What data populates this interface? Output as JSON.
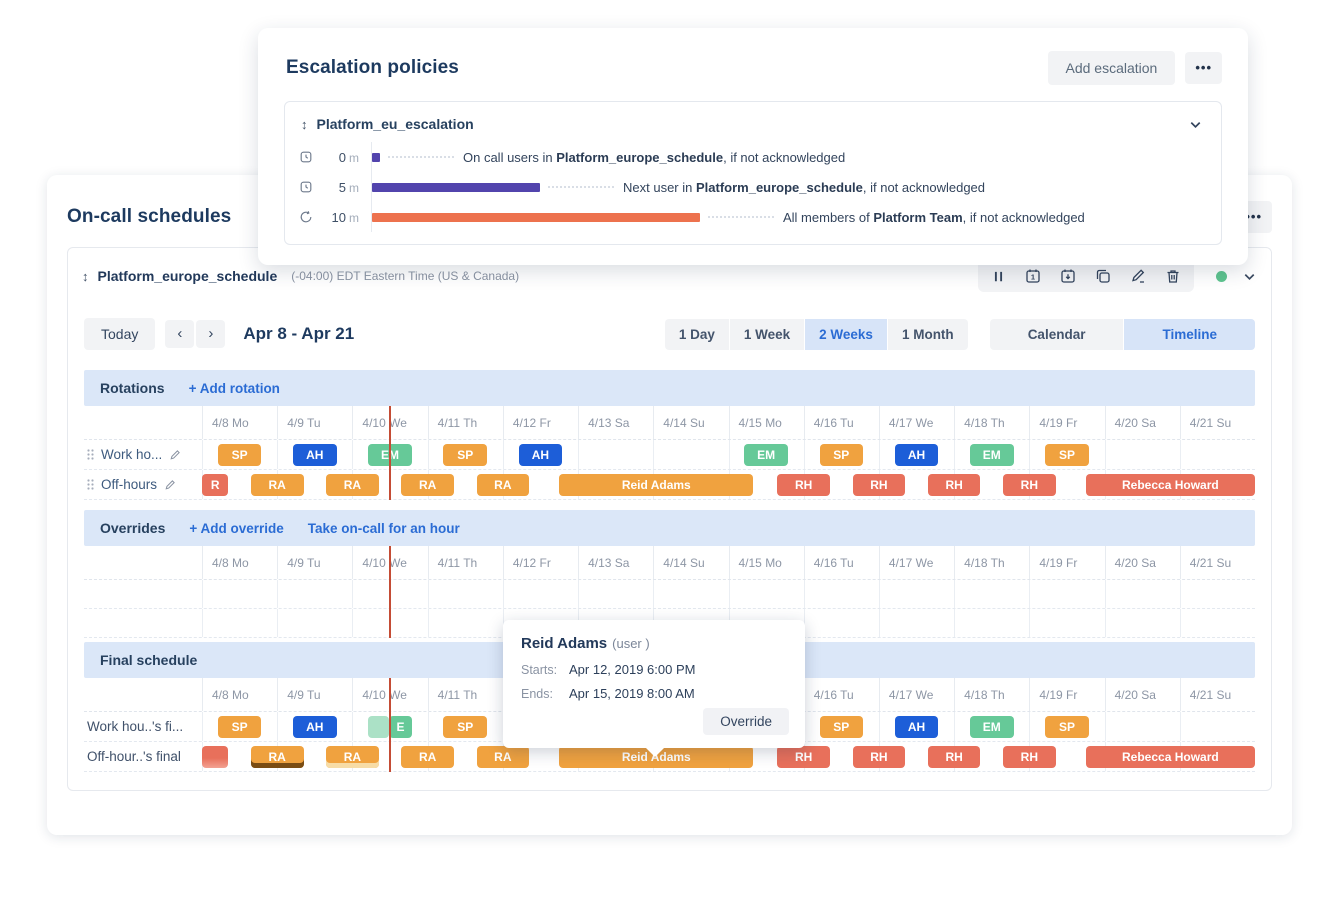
{
  "palette": {
    "accent_blue": "#2b6cd4",
    "navy_text": "#1d3a5f",
    "chip_orange": "#f0a23f",
    "chip_blue": "#1d5ed8",
    "chip_green": "#66c998",
    "chip_salmon": "#e8705b",
    "bar_purple": "#5244ad",
    "bar_orange": "#ed724e",
    "now_line": "#c44c35",
    "band_bg": "#dbe7f8",
    "status_green": "#5ec48f"
  },
  "icons": {
    "dots": "•••",
    "prev": "‹",
    "next": "›",
    "drag": "↕"
  },
  "escalation_card": {
    "title": "Escalation policies",
    "add_button": "Add escalation",
    "policy": {
      "name": "Platform_eu_escalation",
      "rules": [
        {
          "icon": "clock",
          "time_value": "0",
          "time_unit": "m",
          "minutes": 0,
          "bar": "purple",
          "text_pre": "On call users in ",
          "text_bold": "Platform_europe_schedule",
          "text_post": ", if not acknowledged"
        },
        {
          "icon": "clock",
          "time_value": "5",
          "time_unit": "m",
          "minutes": 5,
          "bar": "purple",
          "text_pre": "Next user in ",
          "text_bold": "Platform_europe_schedule",
          "text_post": ", if not acknowledged"
        },
        {
          "icon": "repeat",
          "time_value": "10",
          "time_unit": "m",
          "minutes": 10,
          "bar": "orange",
          "text_pre": "All members of ",
          "text_bold": "Platform Team",
          "text_post": ", if not acknowledged"
        }
      ]
    }
  },
  "schedules_card": {
    "title": "On-call schedules",
    "schedule": {
      "name": "Platform_europe_schedule",
      "timezone": "(-04:00) EDT Eastern Time (US & Canada)",
      "toolbar": {
        "today": "Today",
        "range": "Apr 8 - Apr 21",
        "views": [
          "1 Day",
          "1 Week",
          "2 Weeks",
          "1 Month"
        ],
        "active_view": "2 Weeks",
        "modes": [
          "Calendar",
          "Timeline"
        ],
        "active_mode": "Timeline"
      },
      "sections": {
        "rotations": {
          "title": "Rotations",
          "action": "+ Add rotation"
        },
        "overrides": {
          "title": "Overrides",
          "action_add": "+ Add override",
          "action_take": "Take on-call for an hour"
        },
        "final": {
          "title": "Final schedule"
        }
      },
      "days": [
        "4/8 Mo",
        "4/9 Tu",
        "4/10 We",
        "4/11 Th",
        "4/12 Fr",
        "4/13 Sa",
        "4/14 Su",
        "4/15 Mo",
        "4/16 Tu",
        "4/17 We",
        "4/18 Th",
        "4/19 Fr",
        "4/20 Sa",
        "4/21 Su"
      ],
      "now_day": 2.49,
      "rows": {
        "rotation_work": {
          "label": "Work ho...",
          "blocks": [
            {
              "label": "SP",
              "color": "orange",
              "start": 0.21,
              "end": 0.79
            },
            {
              "label": "AH",
              "color": "blue",
              "start": 1.21,
              "end": 1.79
            },
            {
              "label": "EM",
              "color": "green",
              "start": 2.21,
              "end": 2.79
            },
            {
              "label": "SP",
              "color": "orange",
              "start": 3.21,
              "end": 3.79
            },
            {
              "label": "AH",
              "color": "blue",
              "start": 4.21,
              "end": 4.79
            },
            {
              "label": "EM",
              "color": "green",
              "start": 7.21,
              "end": 7.79
            },
            {
              "label": "SP",
              "color": "orange",
              "start": 8.21,
              "end": 8.79
            },
            {
              "label": "AH",
              "color": "blue",
              "start": 9.21,
              "end": 9.79
            },
            {
              "label": "EM",
              "color": "green",
              "start": 10.21,
              "end": 10.79
            },
            {
              "label": "SP",
              "color": "orange",
              "start": 11.21,
              "end": 11.79
            }
          ]
        },
        "rotation_off": {
          "label": "Off-hours",
          "blocks": [
            {
              "label": "R",
              "color": "salmon",
              "start": 0,
              "end": 0.35
            },
            {
              "label": "RA",
              "color": "orange",
              "start": 0.65,
              "end": 1.35
            },
            {
              "label": "RA",
              "color": "orange",
              "start": 1.65,
              "end": 2.35
            },
            {
              "label": "RA",
              "color": "orange",
              "start": 2.65,
              "end": 3.35
            },
            {
              "label": "RA",
              "color": "orange",
              "start": 3.65,
              "end": 4.35
            },
            {
              "label": "Reid Adams",
              "color": "orange",
              "start": 4.75,
              "end": 7.33
            },
            {
              "label": "RH",
              "color": "salmon",
              "start": 7.65,
              "end": 8.35
            },
            {
              "label": "RH",
              "color": "salmon",
              "start": 8.65,
              "end": 9.35
            },
            {
              "label": "RH",
              "color": "salmon",
              "start": 9.65,
              "end": 10.35
            },
            {
              "label": "RH",
              "color": "salmon",
              "start": 10.65,
              "end": 11.35
            },
            {
              "label": "Rebecca Howard",
              "color": "salmon",
              "start": 11.75,
              "end": 14
            }
          ]
        },
        "final_work": {
          "label": "Work hou..'s fi...",
          "blocks": [
            {
              "label": "SP",
              "color": "orange",
              "start": 0.21,
              "end": 0.79
            },
            {
              "label": "AH",
              "color": "blue",
              "start": 1.21,
              "end": 1.79
            },
            {
              "label": "",
              "color": "green",
              "start": 2.21,
              "end": 2.49,
              "fade": true
            },
            {
              "label": "E",
              "color": "green",
              "start": 2.49,
              "end": 2.79
            },
            {
              "label": "SP",
              "color": "orange",
              "start": 3.21,
              "end": 3.79
            },
            {
              "label": "AH",
              "color": "blue",
              "start": 4.21,
              "end": 4.79
            },
            {
              "label": "EM",
              "color": "green",
              "start": 7.21,
              "end": 7.79
            },
            {
              "label": "SP",
              "color": "orange",
              "start": 8.21,
              "end": 8.79
            },
            {
              "label": "AH",
              "color": "blue",
              "start": 9.21,
              "end": 9.79
            },
            {
              "label": "EM",
              "color": "green",
              "start": 10.21,
              "end": 10.79
            },
            {
              "label": "SP",
              "color": "orange",
              "start": 11.21,
              "end": 11.79
            }
          ]
        },
        "final_off": {
          "label": "Off-hour..'s final",
          "blocks": [
            {
              "label": "",
              "color": "salmon",
              "start": 0,
              "end": 0.35,
              "fade_bottom": true
            },
            {
              "label": "RA",
              "color": "orange",
              "start": 0.65,
              "end": 1.35,
              "accent": "dark"
            },
            {
              "label": "RA",
              "color": "orange",
              "start": 1.65,
              "end": 2.35,
              "accent": "light"
            },
            {
              "label": "RA",
              "color": "orange",
              "start": 2.65,
              "end": 3.35
            },
            {
              "label": "RA",
              "color": "orange",
              "start": 3.65,
              "end": 4.35
            },
            {
              "label": "Reid Adams",
              "color": "orange",
              "start": 4.75,
              "end": 7.33
            },
            {
              "label": "RH",
              "color": "salmon",
              "start": 7.65,
              "end": 8.35
            },
            {
              "label": "RH",
              "color": "salmon",
              "start": 8.65,
              "end": 9.35
            },
            {
              "label": "RH",
              "color": "salmon",
              "start": 9.65,
              "end": 10.35
            },
            {
              "label": "RH",
              "color": "salmon",
              "start": 10.65,
              "end": 11.35
            },
            {
              "label": "Rebecca Howard",
              "color": "salmon",
              "start": 11.75,
              "end": 14
            }
          ]
        }
      }
    }
  },
  "tooltip": {
    "name": "Reid Adams",
    "type": "(user )",
    "starts_label": "Starts:",
    "starts": "Apr 12, 2019 6:00 PM",
    "ends_label": "Ends:",
    "ends": "Apr 15, 2019 8:00 AM",
    "button": "Override"
  }
}
